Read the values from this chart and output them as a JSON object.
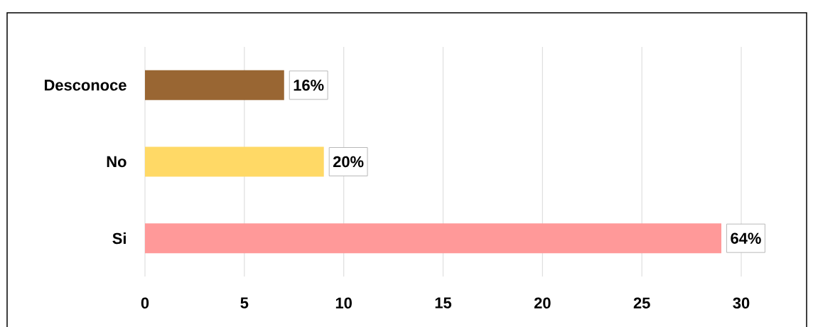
{
  "chart_data": {
    "type": "bar",
    "orientation": "horizontal",
    "categories": [
      "Desconoce",
      "No",
      "Si"
    ],
    "values": [
      7,
      9,
      29
    ],
    "colors": [
      "#996633",
      "#ffd966",
      "#ff9999"
    ],
    "annotations": [
      {
        "text": "16%",
        "x": 7,
        "y": "Desconoce"
      },
      {
        "text": "20%",
        "x": 9,
        "y": "No"
      },
      {
        "text": "64%",
        "x": 29,
        "y": "Si"
      }
    ],
    "xlim": [
      0,
      30
    ],
    "xticks": [
      0,
      5,
      10,
      15,
      20,
      25,
      30
    ],
    "grid": "x"
  }
}
